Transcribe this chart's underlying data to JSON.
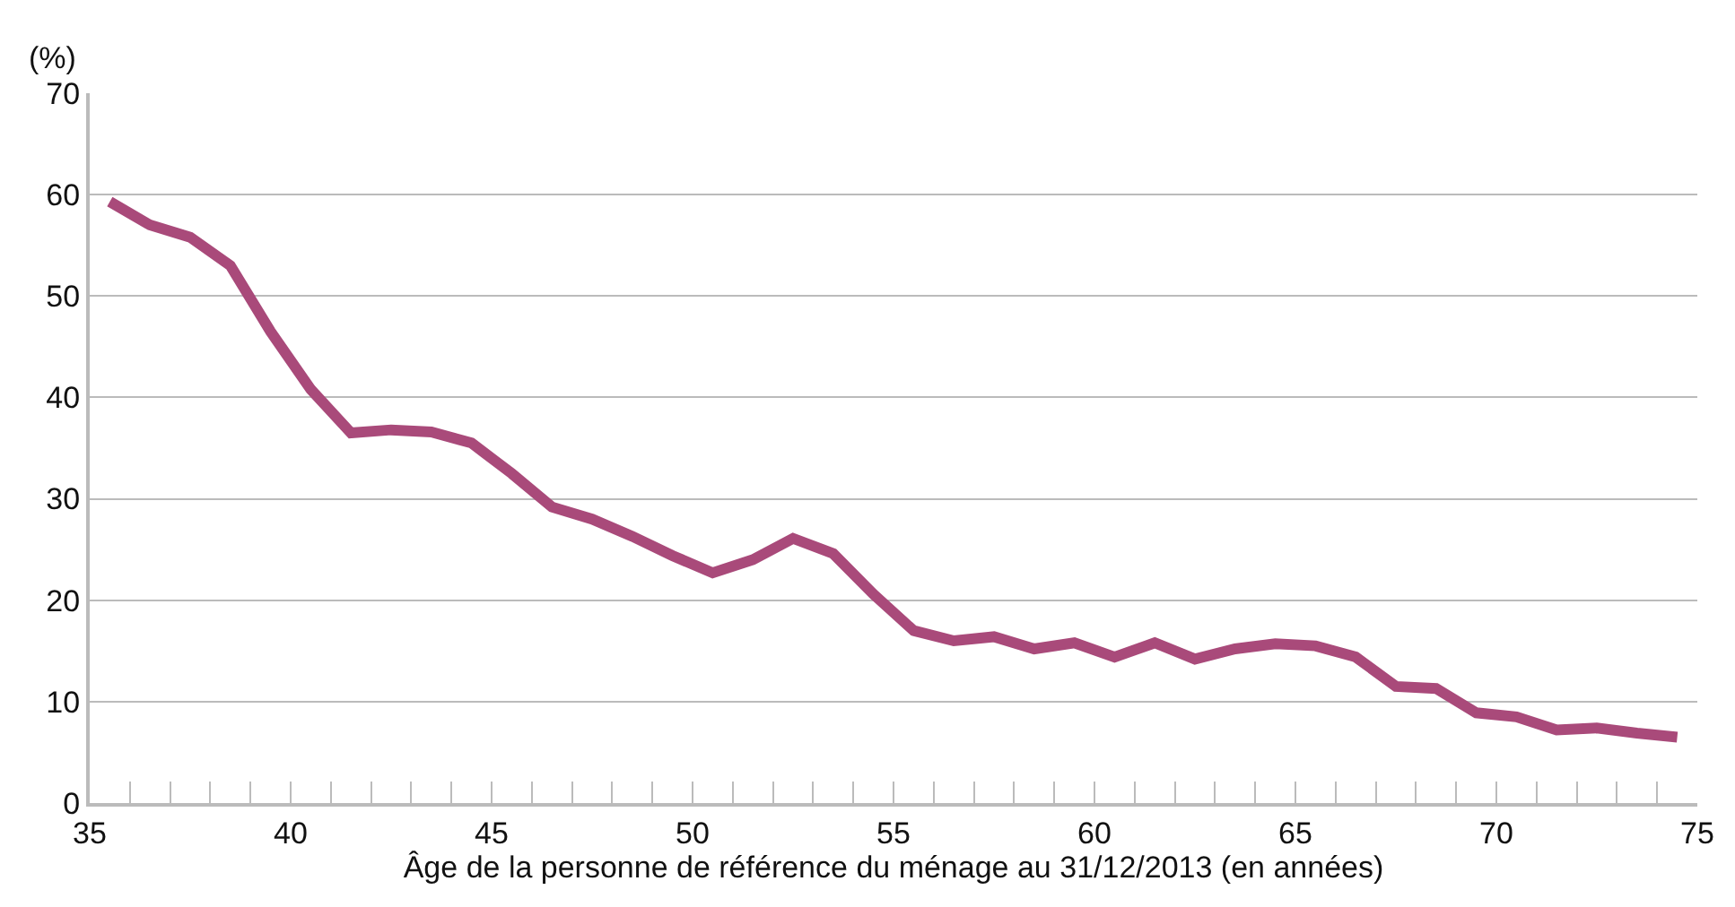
{
  "chart_data": {
    "type": "line",
    "ylabel": "(%)",
    "xlabel": "Âge de la personne de référence du ménage au 31/12/2013 (en années)",
    "x": [
      35.5,
      36.5,
      37.5,
      38.5,
      39.5,
      40.5,
      41.5,
      42.5,
      43.5,
      44.5,
      45.5,
      46.5,
      47.5,
      48.5,
      49.5,
      50.5,
      51.5,
      52.5,
      53.5,
      54.5,
      55.5,
      56.5,
      57.5,
      58.5,
      59.5,
      60.5,
      61.5,
      62.5,
      63.5,
      64.5,
      65.5,
      66.5,
      67.5,
      68.5,
      69.5,
      70.5,
      71.5,
      72.5,
      73.5,
      74.5
    ],
    "series": [
      {
        "color": "#a94a7a",
        "values": [
          59.3,
          57,
          55.8,
          53,
          46.5,
          40.8,
          36.5,
          36.8,
          36.6,
          35.5,
          32.5,
          29.2,
          28,
          26.3,
          24.4,
          22.7,
          24,
          26.1,
          24.6,
          20.6,
          17,
          16,
          16.4,
          15.2,
          15.8,
          14.4,
          15.8,
          14.2,
          15.2,
          15.7,
          15.5,
          14.4,
          11.5,
          11.3,
          8.9,
          8.5,
          7.2,
          7.4,
          6.9,
          6.5
        ]
      }
    ],
    "xlim": [
      35,
      75
    ],
    "xticks": [
      35,
      {
        "value": 36,
        "label": null
      },
      {
        "value": 37,
        "label": null
      },
      {
        "value": 38,
        "label": null
      },
      {
        "value": 39,
        "label": null
      },
      40,
      {
        "value": 41,
        "label": null
      },
      {
        "value": 42,
        "label": null
      },
      {
        "value": 43,
        "label": null
      },
      {
        "value": 44,
        "label": null
      },
      45,
      {
        "value": 46,
        "label": null
      },
      {
        "value": 47,
        "label": null
      },
      {
        "value": 48,
        "label": null
      },
      {
        "value": 49,
        "label": null
      },
      50,
      {
        "value": 51,
        "label": null
      },
      {
        "value": 52,
        "label": null
      },
      {
        "value": 53,
        "label": null
      },
      {
        "value": 54,
        "label": null
      },
      55,
      {
        "value": 56,
        "label": null
      },
      {
        "value": 57,
        "label": null
      },
      {
        "value": 58,
        "label": null
      },
      {
        "value": 59,
        "label": null
      },
      60,
      {
        "value": 61,
        "label": null
      },
      {
        "value": 62,
        "label": null
      },
      {
        "value": 63,
        "label": null
      },
      {
        "value": 64,
        "label": null
      },
      65,
      {
        "value": 66,
        "label": null
      },
      {
        "value": 67,
        "label": null
      },
      {
        "value": 68,
        "label": null
      },
      {
        "value": 69,
        "label": null
      },
      70,
      {
        "value": 71,
        "label": null
      },
      {
        "value": 72,
        "label": null
      },
      {
        "value": 73,
        "label": null
      },
      {
        "value": 74,
        "label": null
      },
      75
    ],
    "ylim": [
      0,
      70
    ],
    "yticks": [
      0,
      10,
      20,
      30,
      40,
      50,
      60,
      70
    ],
    "grid": "y",
    "marker": "none",
    "line_style": "solid"
  }
}
